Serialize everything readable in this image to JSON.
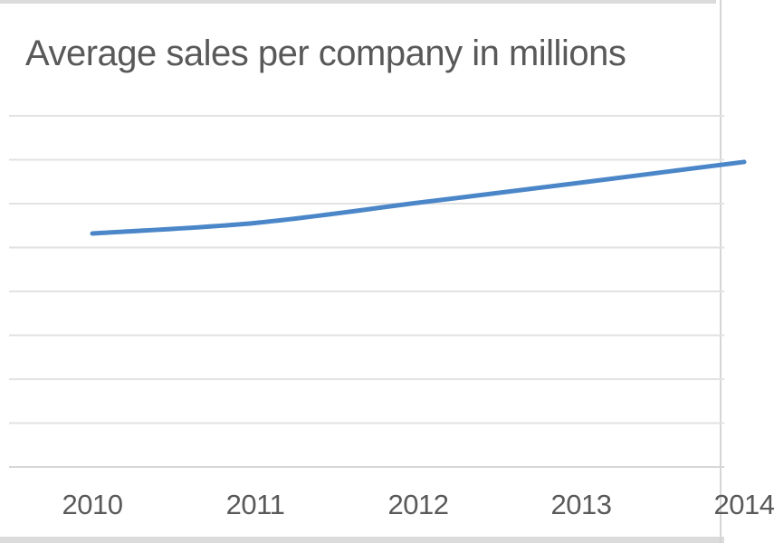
{
  "frame": {
    "top_strip_color": "#dbdbdb",
    "bottom_strip_color": "#dbdbdb",
    "right_edge_color": "#d5d5d5"
  },
  "chart_data": {
    "type": "line",
    "title": "Average sales per company in millions",
    "categories": [
      "2010",
      "2011",
      "2012",
      "2013",
      "2014"
    ],
    "series": [
      {
        "values": [
          5.32,
          5.56,
          6.02,
          6.48,
          6.95
        ],
        "values_unit": "gridline spacings above the visible bottom axis (y-axis tick labels are cropped out of view)"
      }
    ],
    "x_axis": {
      "tick_labels_visible": true,
      "last_label_clipped": true
    },
    "y_axis": {
      "tick_labels_visible": false,
      "visible_horizontal_gridlines": 9
    },
    "legend": "none",
    "line_smoothed": true,
    "line_start_cap": "round",
    "colors": {
      "line": "#4a86c8",
      "gridline": "#e2e2e2",
      "axis_line": "#d7d7d7",
      "text": "#595959"
    }
  }
}
